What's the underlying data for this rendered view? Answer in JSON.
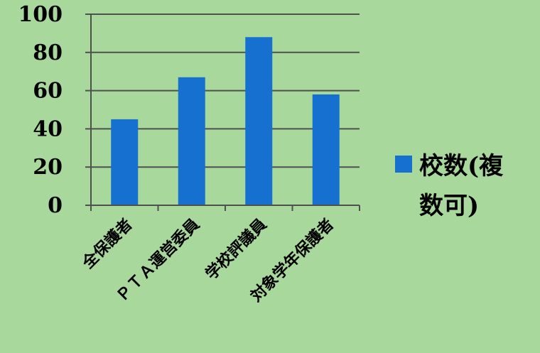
{
  "chart_data": {
    "type": "bar",
    "categories": [
      "全保護者",
      "ＰＴＡ運営委員",
      "学校評議員",
      "対象学年保護者"
    ],
    "series": [
      {
        "name": "校数(複数可)",
        "values": [
          45,
          67,
          88,
          58
        ]
      }
    ],
    "ylim": [
      0,
      100
    ],
    "yticks": [
      0,
      20,
      40,
      60,
      80,
      100
    ],
    "grid": true,
    "legend": {
      "position": "right",
      "lines": [
        "校数(複",
        "数可)"
      ]
    },
    "colors": {
      "bar": "#1670d0",
      "background": "#a8d89c",
      "grid": "#505050"
    }
  }
}
